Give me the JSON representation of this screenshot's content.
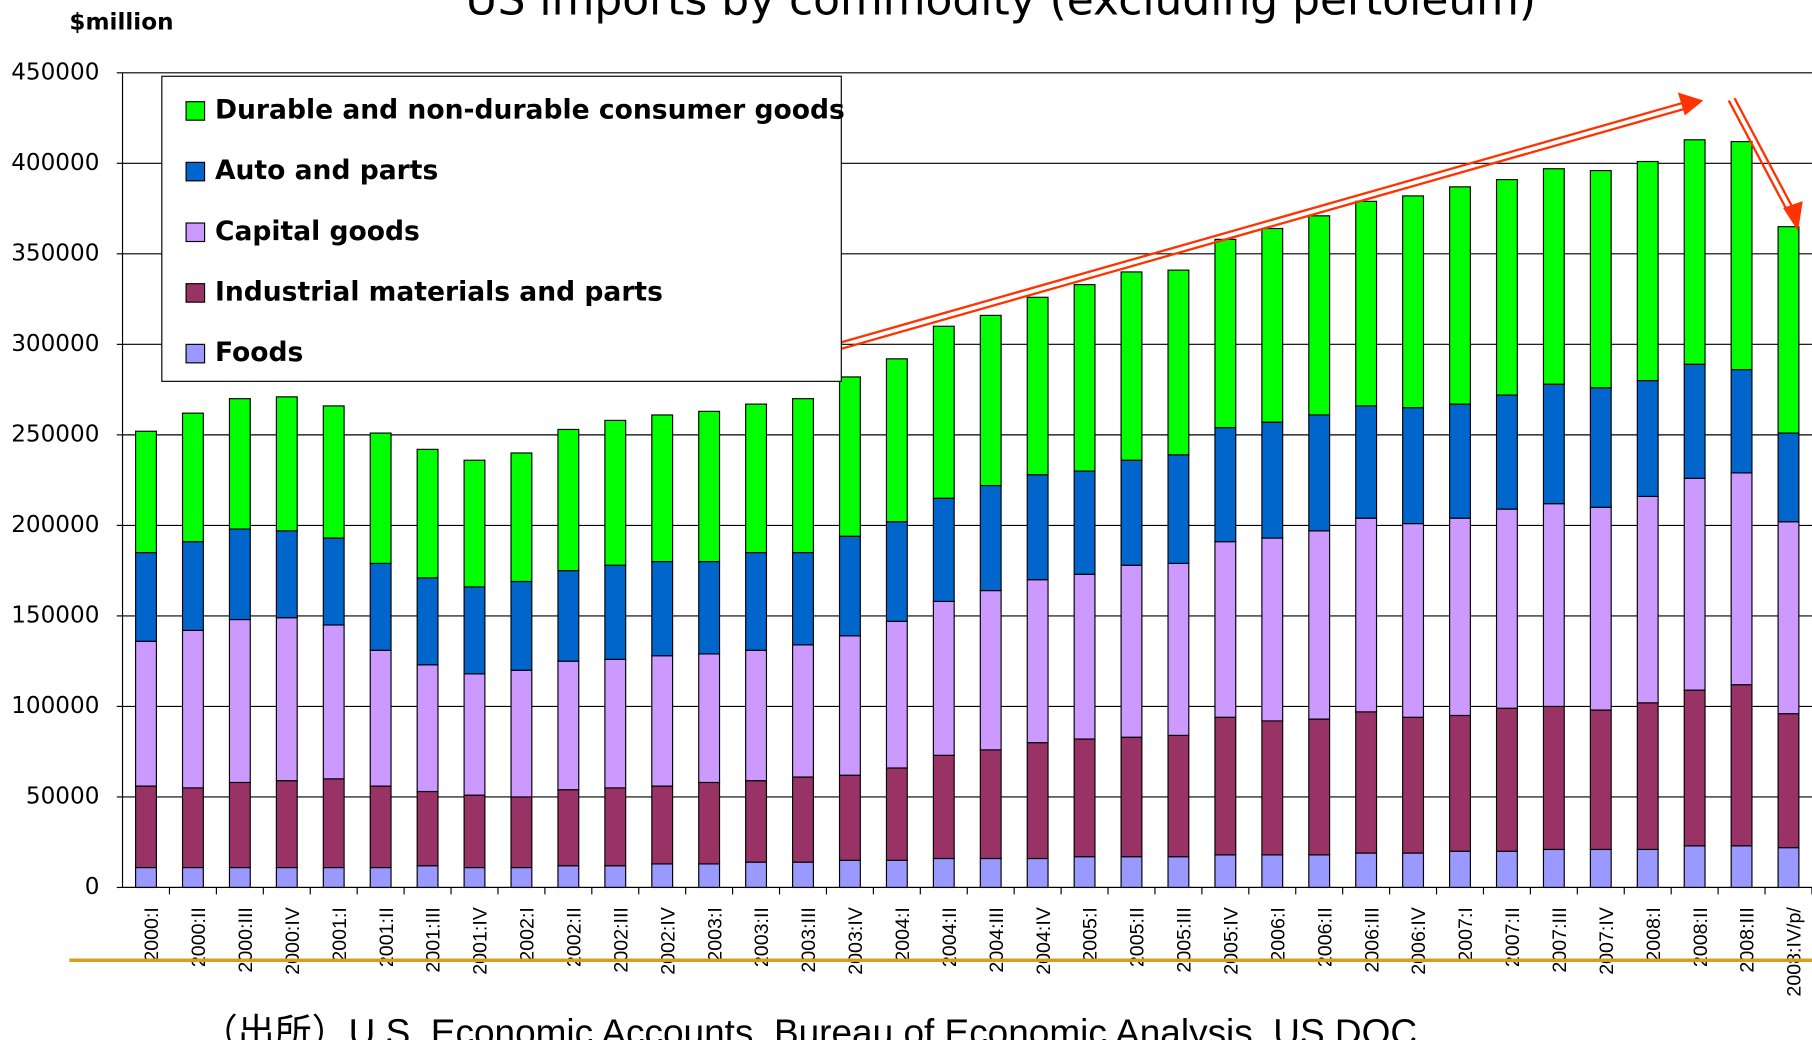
{
  "chart_data": {
    "type": "stacked_bar",
    "title": "US imports by commodity (excluding pertoleum)",
    "y_label": "$million",
    "source": "（出所）U.S. Economic Accounts, Bureau of Economic Analysis, US DOC",
    "categories": [
      "2000:I",
      "2000:II",
      "2000:III",
      "2000:IV",
      "2001:I",
      "2001:II",
      "2001:III",
      "2001:IV",
      "2002:I",
      "2002:II",
      "2002:III",
      "2002:IV",
      "2003:I",
      "2003:II",
      "2003:III",
      "2003:IV",
      "2004:I",
      "2004:II",
      "2004:III",
      "2004:IV",
      "2005:I",
      "2005:II",
      "2005:III",
      "2005:IV",
      "2006:I",
      "2006:II",
      "2006:III",
      "2006:IV",
      "2007:I",
      "2007:II",
      "2007:III",
      "2007:IV",
      "2008:I",
      "2008:II",
      "2008:III",
      "2008:IV/p/"
    ],
    "series": [
      {
        "name": "Foods",
        "color": "#9999ff",
        "values": [
          11000,
          11000,
          11000,
          11000,
          11000,
          11000,
          12000,
          11000,
          11000,
          12000,
          12000,
          13000,
          13000,
          14000,
          14000,
          15000,
          15000,
          16000,
          16000,
          16000,
          17000,
          17000,
          17000,
          18000,
          18000,
          18000,
          19000,
          19000,
          20000,
          20000,
          21000,
          21000,
          21000,
          23000,
          23000,
          22000
        ]
      },
      {
        "name": "Industrial materials and parts",
        "color": "#993366",
        "values": [
          45000,
          44000,
          47000,
          48000,
          49000,
          45000,
          41000,
          40000,
          39000,
          42000,
          43000,
          43000,
          45000,
          45000,
          47000,
          47000,
          51000,
          57000,
          60000,
          64000,
          65000,
          66000,
          67000,
          76000,
          74000,
          75000,
          78000,
          75000,
          75000,
          79000,
          79000,
          77000,
          81000,
          86000,
          89000,
          74000
        ]
      },
      {
        "name": "Capital goods",
        "color": "#cc99ff",
        "values": [
          80000,
          87000,
          90000,
          90000,
          85000,
          75000,
          70000,
          67000,
          70000,
          71000,
          71000,
          72000,
          71000,
          72000,
          73000,
          77000,
          81000,
          85000,
          88000,
          90000,
          91000,
          95000,
          95000,
          97000,
          101000,
          104000,
          107000,
          107000,
          109000,
          110000,
          112000,
          112000,
          114000,
          117000,
          117000,
          106000
        ]
      },
      {
        "name": "Auto and parts",
        "color": "#0066cc",
        "values": [
          49000,
          49000,
          50000,
          48000,
          48000,
          48000,
          48000,
          48000,
          49000,
          50000,
          52000,
          52000,
          51000,
          54000,
          51000,
          55000,
          55000,
          57000,
          58000,
          58000,
          57000,
          58000,
          60000,
          63000,
          64000,
          64000,
          62000,
          64000,
          63000,
          63000,
          66000,
          66000,
          64000,
          63000,
          57000,
          49000
        ]
      },
      {
        "name": "Durable and non-durable consumer goods",
        "color": "#00ff00",
        "values": [
          67000,
          71000,
          72000,
          74000,
          73000,
          72000,
          71000,
          70000,
          71000,
          78000,
          80000,
          81000,
          83000,
          82000,
          85000,
          88000,
          90000,
          95000,
          94000,
          98000,
          103000,
          104000,
          102000,
          104000,
          107000,
          110000,
          113000,
          117000,
          120000,
          119000,
          119000,
          120000,
          121000,
          124000,
          126000,
          114000
        ]
      }
    ],
    "ylim": [
      0,
      450000
    ],
    "yticks": [
      0,
      50000,
      100000,
      150000,
      200000,
      250000,
      300000,
      350000,
      400000,
      450000
    ],
    "grid": true,
    "legend": "upper left"
  }
}
